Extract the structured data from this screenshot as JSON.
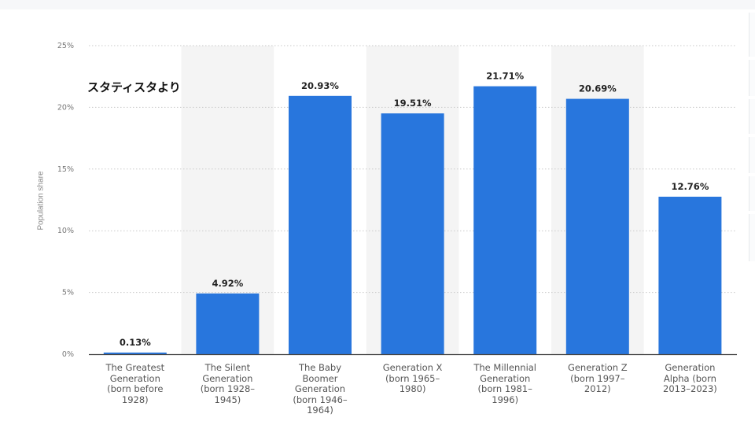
{
  "chart_data": {
    "type": "bar",
    "title": "",
    "ylabel": "Population share",
    "xlabel": "",
    "ylim": [
      0,
      25
    ],
    "yticks": [
      0,
      5,
      10,
      15,
      20,
      25
    ],
    "yticklabels": [
      "0%",
      "5%",
      "10%",
      "15%",
      "20%",
      "25%"
    ],
    "grid": true,
    "categories": [
      "The Greatest\nGeneration\n(born before\n1928)",
      "The Silent\nGeneration\n(born 1928–\n1945)",
      "The Baby\nBoomer\nGeneration\n(born 1946–\n1964)",
      "Generation X\n(born 1965–\n1980)",
      "The Millennial\nGeneration\n(born 1981–\n1996)",
      "Generation Z\n(born 1997–\n2012)",
      "Generation\nAlpha (born\n2013–2023)"
    ],
    "values": [
      0.13,
      4.92,
      20.93,
      19.51,
      21.71,
      20.69,
      12.76
    ],
    "data_labels": [
      "0.13%",
      "4.92%",
      "20.93%",
      "19.51%",
      "21.71%",
      "20.69%",
      "12.76%"
    ],
    "bar_color": "#2876dd",
    "band_color": "#f4f4f4",
    "label_color": "#222222"
  },
  "watermark": "スタティスタより"
}
